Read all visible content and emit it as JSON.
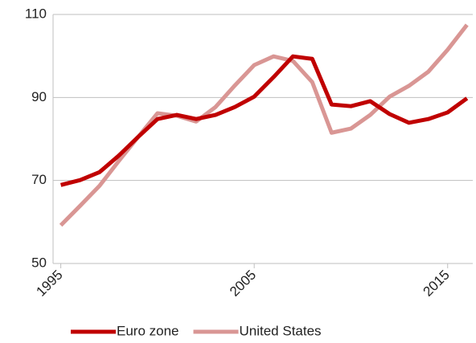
{
  "chart_data": {
    "type": "line",
    "x": [
      1995,
      1996,
      1997,
      1998,
      1999,
      2000,
      2001,
      2002,
      2003,
      2004,
      2005,
      2006,
      2007,
      2008,
      2009,
      2010,
      2011,
      2012,
      2013,
      2014,
      2015,
      2016
    ],
    "series": [
      {
        "name": "Euro zone",
        "color": "#c00000",
        "values": [
          68.9,
          70.1,
          72,
          76,
          80.5,
          84.8,
          85.8,
          84.8,
          85.8,
          87.7,
          90.2,
          94.9,
          99.9,
          99.3,
          88.3,
          87.9,
          89.1,
          86,
          83.9,
          84.8,
          86.4,
          89.8
        ]
      },
      {
        "name": "United States",
        "color": "#d99694",
        "values": [
          59.2,
          63.9,
          68.7,
          74.7,
          80.5,
          86.2,
          85.6,
          84.2,
          87.7,
          92.9,
          97.8,
          99.9,
          98.8,
          93.7,
          81.5,
          82.5,
          85.8,
          90.2,
          92.8,
          96.2,
          101.5,
          107.5
        ]
      }
    ],
    "xlim": [
      1994.6,
      2016.3
    ],
    "xticks": [
      1995,
      2005,
      2015
    ],
    "ylim": [
      50,
      110
    ],
    "yticks": [
      50,
      70,
      90,
      110
    ],
    "grid": true,
    "legend": "bottom"
  }
}
